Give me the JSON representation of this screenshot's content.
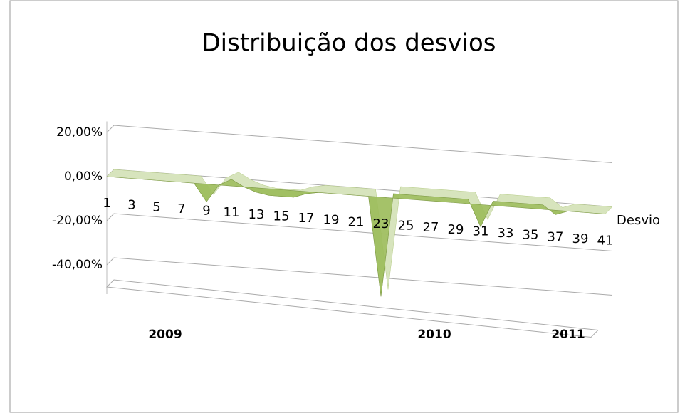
{
  "chart_data": {
    "type": "area3d",
    "title": "Distribuição dos desvios",
    "categories": [
      "1",
      null,
      "3",
      null,
      "5",
      null,
      "7",
      null,
      "9",
      null,
      "11",
      null,
      "13",
      null,
      "15",
      null,
      "17",
      null,
      "19",
      null,
      "21",
      null,
      "23",
      null,
      "25",
      null,
      "27",
      null,
      "29",
      null,
      "31",
      null,
      "33",
      null,
      "35",
      null,
      "37",
      null,
      "39",
      null,
      "41"
    ],
    "series": [
      {
        "name": "Desvio",
        "color": "#9bbb59",
        "values": [
          0,
          0,
          0,
          0,
          0,
          0,
          0,
          0,
          -8,
          0,
          3,
          0,
          -2,
          -3,
          -3,
          -3,
          -1,
          0,
          0,
          0,
          0,
          0,
          -45,
          2,
          2,
          2,
          2,
          2,
          2,
          2,
          -10,
          2,
          2,
          2,
          2,
          2,
          -2,
          0,
          0,
          0,
          0
        ]
      }
    ],
    "ylim": [
      -50,
      25
    ],
    "yticks": [
      {
        "value": 20,
        "label": "20,00%"
      },
      {
        "value": 0,
        "label": "0,00%"
      },
      {
        "value": -20,
        "label": "-20,00%"
      },
      {
        "value": -40,
        "label": "-40,00%"
      }
    ],
    "grid": true,
    "group_labels": [
      "2009",
      "2010",
      "2011"
    ]
  }
}
